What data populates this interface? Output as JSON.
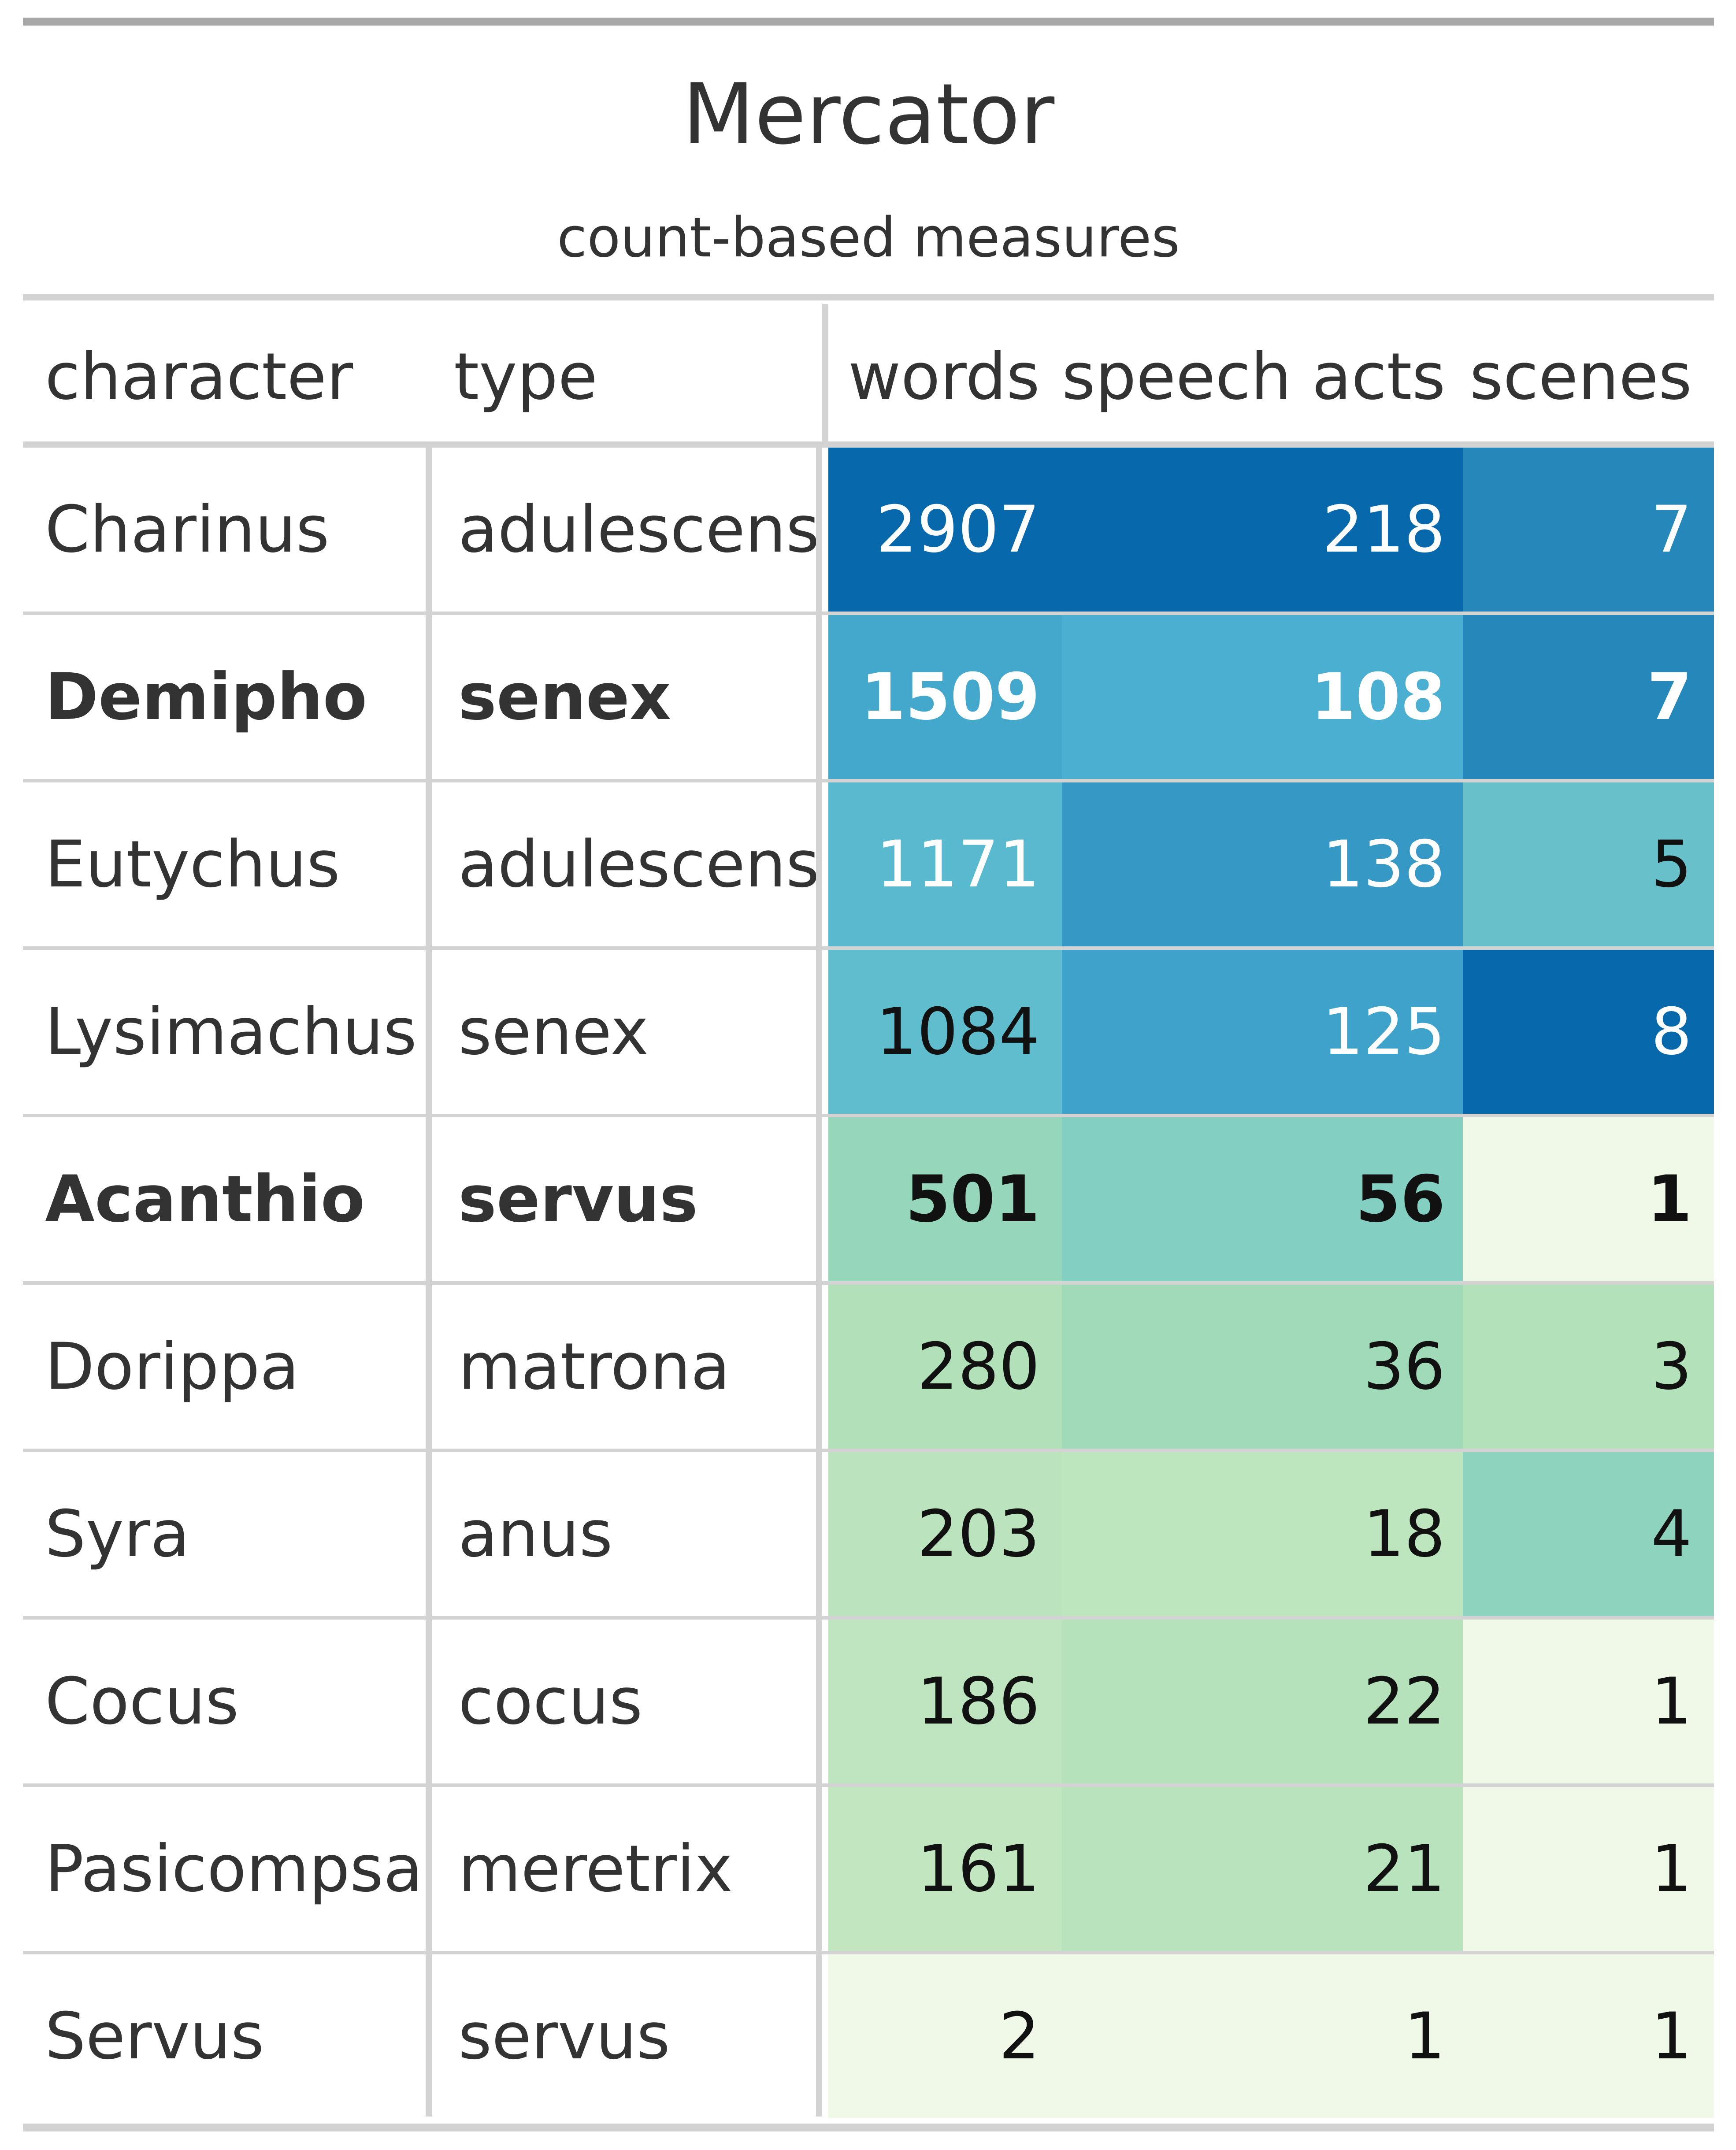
{
  "chart_data": {
    "type": "table",
    "title": "Mercator",
    "subtitle": "count-based measures",
    "columns": {
      "character": "character",
      "type": "type",
      "words": "words",
      "speech_acts": "speech acts",
      "scenes": "scenes"
    },
    "rows": [
      {
        "character": "Charinus",
        "type": "adulescens",
        "words": 2907,
        "speech_acts": 218,
        "scenes": 7,
        "bold": false
      },
      {
        "character": "Demipho",
        "type": "senex",
        "words": 1509,
        "speech_acts": 108,
        "scenes": 7,
        "bold": true
      },
      {
        "character": "Eutychus",
        "type": "adulescens",
        "words": 1171,
        "speech_acts": 138,
        "scenes": 5,
        "bold": false
      },
      {
        "character": "Lysimachus",
        "type": "senex",
        "words": 1084,
        "speech_acts": 125,
        "scenes": 8,
        "bold": false
      },
      {
        "character": "Acanthio",
        "type": "servus",
        "words": 501,
        "speech_acts": 56,
        "scenes": 1,
        "bold": true
      },
      {
        "character": "Dorippa",
        "type": "matrona",
        "words": 280,
        "speech_acts": 36,
        "scenes": 3,
        "bold": false
      },
      {
        "character": "Syra",
        "type": "anus",
        "words": 203,
        "speech_acts": 18,
        "scenes": 4,
        "bold": false
      },
      {
        "character": "Cocus",
        "type": "cocus",
        "words": 186,
        "speech_acts": 22,
        "scenes": 1,
        "bold": false
      },
      {
        "character": "Pasicompsa",
        "type": "meretrix",
        "words": 161,
        "speech_acts": 21,
        "scenes": 1,
        "bold": false
      },
      {
        "character": "Servus",
        "type": "servus",
        "words": 2,
        "speech_acts": 1,
        "scenes": 1,
        "bold": false
      }
    ],
    "color_scale": [
      "#f0f9e8",
      "#ccebc5",
      "#a8ddb5",
      "#7bccc4",
      "#4eb3d3",
      "#2b8cbe",
      "#0868ac"
    ],
    "light_text_color": "#ffffff",
    "dark_text_color": "#111111"
  }
}
